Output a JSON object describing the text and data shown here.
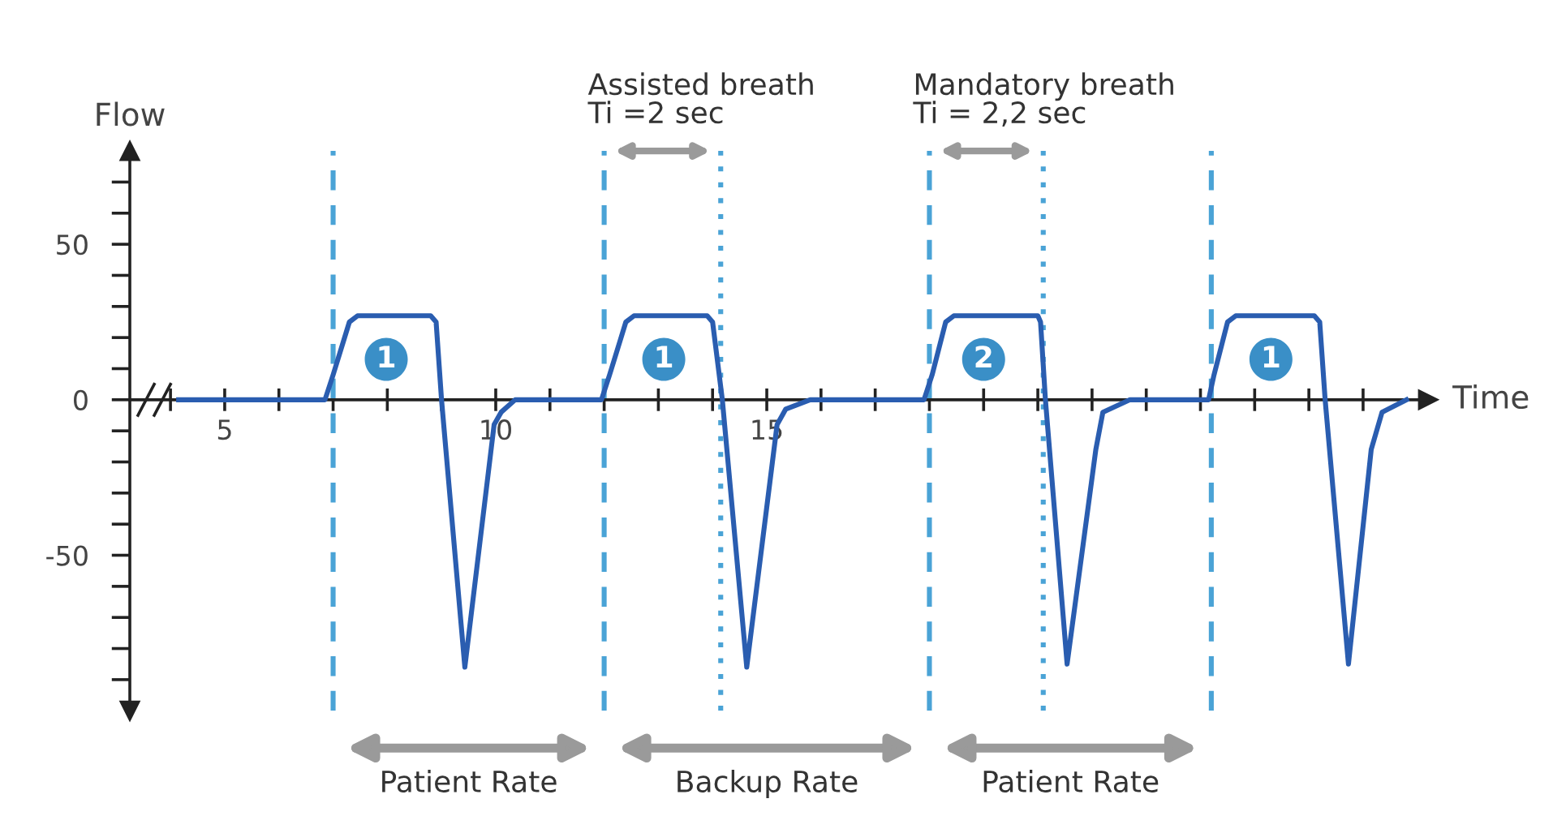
{
  "chart_data": {
    "type": "line",
    "ylabel": "Flow",
    "xlabel": "Time",
    "xlim": [
      3.25,
      27.2
    ],
    "ylim": [
      -100,
      80
    ],
    "xticks": [
      {
        "value": 4,
        "label": null
      },
      5,
      {
        "value": 6,
        "label": null
      },
      {
        "value": 7,
        "label": null
      },
      {
        "value": 8,
        "label": null
      },
      {
        "value": 9,
        "label": null
      },
      10,
      {
        "value": 11,
        "label": null
      },
      {
        "value": 12,
        "label": null
      },
      {
        "value": 13,
        "label": null
      },
      {
        "value": 14,
        "label": null
      },
      15,
      {
        "value": 16,
        "label": null
      },
      {
        "value": 17,
        "label": null
      },
      {
        "value": 18,
        "label": null
      },
      {
        "value": 19,
        "label": null
      },
      {
        "value": 20,
        "label": null
      },
      {
        "value": 21,
        "label": null
      },
      {
        "value": 22,
        "label": null
      },
      {
        "value": 23,
        "label": null
      },
      {
        "value": 24,
        "label": null
      },
      {
        "value": 25,
        "label": null
      },
      {
        "value": 26,
        "label": null
      }
    ],
    "yticks": [
      {
        "value": -90,
        "label": null
      },
      {
        "value": -80,
        "label": null
      },
      {
        "value": -70,
        "label": null
      },
      {
        "value": -60,
        "label": null
      },
      -50,
      {
        "value": -40,
        "label": null
      },
      {
        "value": -30,
        "label": null
      },
      {
        "value": -20,
        "label": null
      },
      {
        "value": -10,
        "label": null
      },
      0,
      {
        "value": 10,
        "label": null
      },
      {
        "value": 20,
        "label": null
      },
      {
        "value": 30,
        "label": null
      },
      {
        "value": 40,
        "label": null
      },
      50,
      {
        "value": 60,
        "label": null
      },
      {
        "value": 70,
        "label": null
      }
    ],
    "grid": false,
    "legend": false,
    "series": [
      {
        "color": "#2a5db0",
        "x": [
          4.15,
          6.85,
          7.0,
          7.3,
          7.45,
          8.8,
          8.9,
          9.0,
          9.43,
          9.97,
          10.1,
          10.36,
          11.95,
          12.1,
          12.4,
          12.55,
          13.9,
          14.0,
          14.18,
          14.63,
          15.19,
          15.35,
          15.8,
          17.9,
          18.05,
          18.3,
          18.45,
          20.0,
          20.05,
          20.14,
          20.54,
          21.07,
          21.2,
          21.7,
          23.15,
          23.25,
          23.5,
          23.65,
          25.1,
          25.2,
          25.3,
          25.73,
          26.15,
          26.35,
          26.8
        ],
        "values": [
          0,
          0,
          8,
          25,
          27,
          27,
          25,
          0,
          -86,
          -8,
          -4,
          0,
          0,
          8,
          25,
          27,
          27,
          25,
          0,
          -86,
          -8,
          -3,
          0,
          0,
          8,
          25,
          27,
          27,
          25,
          0,
          -85,
          -16,
          -4,
          0,
          0,
          8,
          25,
          27,
          27,
          25,
          0,
          -85,
          -16,
          -4,
          0
        ]
      }
    ],
    "ref_lines": [
      {
        "axis": "x",
        "value": 7,
        "color": "#4aa3d6",
        "line_style": "dashed"
      },
      {
        "axis": "x",
        "value": 12,
        "color": "#4aa3d6",
        "line_style": "dashed"
      },
      {
        "axis": "x",
        "value": 14.15,
        "color": "#4aa3d6",
        "line_style": "dotted"
      },
      {
        "axis": "x",
        "value": 18,
        "color": "#4aa3d6",
        "line_style": "dashed"
      },
      {
        "axis": "x",
        "value": 20.1,
        "color": "#4aa3d6",
        "line_style": "dotted"
      },
      {
        "axis": "x",
        "value": 23.2,
        "color": "#4aa3d6",
        "line_style": "dashed"
      }
    ],
    "annotations": [
      "Assisted breath\nTi =2 sec",
      "Mandatory breath\nTi = 2,2 sec",
      "Patient Rate",
      "Backup Rate",
      "Patient Rate",
      {
        "text": "1",
        "x": 7.98,
        "y": 13
      },
      {
        "text": "1",
        "x": 13.1,
        "y": 13
      },
      {
        "text": "2",
        "x": 19.0,
        "y": 13
      },
      {
        "text": "1",
        "x": 24.3,
        "y": 13
      }
    ]
  }
}
